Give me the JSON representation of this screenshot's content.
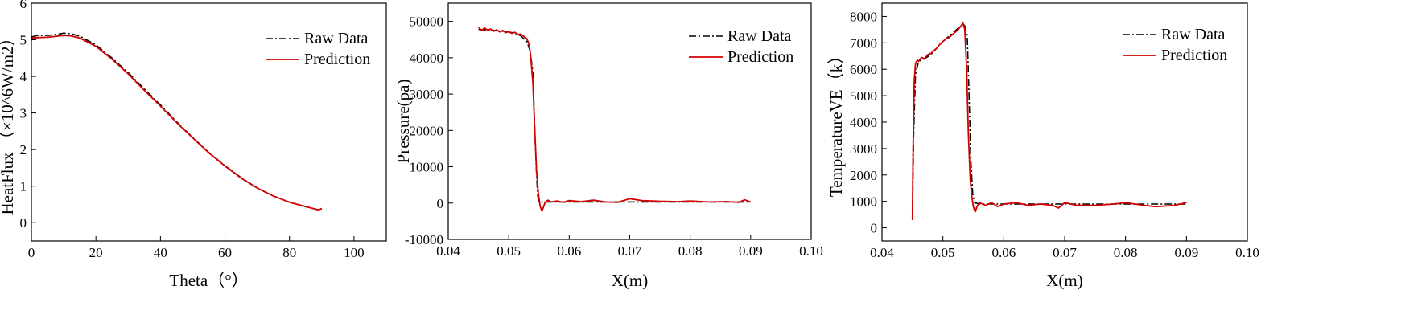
{
  "chart_data": [
    {
      "type": "line",
      "xlabel": "Theta（°）",
      "ylabel": "HeatFlux （×10^6W/m2）",
      "xlim": [
        0,
        110
      ],
      "ylim": [
        -0.5,
        6
      ],
      "xticks": [
        0,
        20,
        40,
        60,
        80,
        100
      ],
      "yticks": [
        0,
        1,
        2,
        3,
        4,
        5,
        6
      ],
      "grid": false,
      "legend_position": "top-right",
      "series": [
        {
          "name": "Raw Data",
          "style": "dash-dot",
          "color": "#000000",
          "x": [
            0,
            2,
            5,
            8,
            10,
            12,
            15,
            20,
            25,
            30,
            35,
            40,
            45,
            50,
            55,
            60,
            65,
            70,
            75,
            80,
            85,
            89,
            90
          ],
          "y": [
            5.08,
            5.12,
            5.12,
            5.15,
            5.18,
            5.17,
            5.1,
            4.86,
            4.5,
            4.1,
            3.66,
            3.22,
            2.76,
            2.33,
            1.92,
            1.56,
            1.23,
            0.95,
            0.73,
            0.56,
            0.44,
            0.35,
            0.38
          ]
        },
        {
          "name": "Prediction",
          "style": "solid",
          "color": "#d40000",
          "x": [
            0,
            2,
            5,
            8,
            10,
            12,
            15,
            20,
            25,
            30,
            35,
            40,
            45,
            50,
            55,
            60,
            65,
            70,
            75,
            80,
            85,
            89,
            90
          ],
          "y": [
            5.05,
            5.06,
            5.07,
            5.1,
            5.12,
            5.11,
            5.05,
            4.82,
            4.47,
            4.07,
            3.62,
            3.19,
            2.74,
            2.32,
            1.91,
            1.55,
            1.22,
            0.95,
            0.73,
            0.56,
            0.44,
            0.35,
            0.39
          ]
        }
      ]
    },
    {
      "type": "line",
      "xlabel": "X(m)",
      "ylabel": "Pressure(pa)",
      "xlim": [
        0.04,
        0.1
      ],
      "ylim": [
        -10000,
        55000
      ],
      "xticks": [
        0.04,
        0.05,
        0.06,
        0.07,
        0.08,
        0.09,
        0.1
      ],
      "xtick_labels": [
        "0.04",
        "0.05",
        "0.06",
        "0.07",
        "0.08",
        "0.09",
        "0.10"
      ],
      "yticks": [
        -10000,
        0,
        10000,
        20000,
        30000,
        40000,
        50000
      ],
      "grid": false,
      "legend_position": "top-right",
      "series": [
        {
          "name": "Raw Data",
          "style": "dash-dot",
          "color": "#000000",
          "x": [
            0.045,
            0.047,
            0.049,
            0.051,
            0.052,
            0.053,
            0.0535,
            0.054,
            0.0543,
            0.0546,
            0.0548,
            0.055,
            0.0553,
            0.056,
            0.06,
            0.07,
            0.08,
            0.09
          ],
          "y": [
            47800,
            47600,
            47300,
            46800,
            46000,
            44500,
            42000,
            36000,
            20000,
            8000,
            2000,
            500,
            300,
            300,
            300,
            300,
            300,
            300
          ]
        },
        {
          "name": "Prediction",
          "style": "solid",
          "color": "#d40000",
          "x": [
            0.045,
            0.0455,
            0.046,
            0.0465,
            0.047,
            0.0475,
            0.048,
            0.0485,
            0.049,
            0.0495,
            0.05,
            0.0505,
            0.051,
            0.0515,
            0.052,
            0.0525,
            0.053,
            0.0533,
            0.0536,
            0.054,
            0.0543,
            0.0546,
            0.0549,
            0.0552,
            0.0555,
            0.0558,
            0.056,
            0.0565,
            0.057,
            0.058,
            0.059,
            0.06,
            0.062,
            0.064,
            0.066,
            0.068,
            0.07,
            0.072,
            0.075,
            0.078,
            0.08,
            0.083,
            0.086,
            0.088,
            0.089,
            0.09
          ],
          "y": [
            48500,
            47500,
            48200,
            47600,
            47900,
            47300,
            47700,
            47100,
            47500,
            46900,
            47200,
            46700,
            47000,
            46400,
            46500,
            45900,
            45200,
            44000,
            41000,
            33000,
            20000,
            9000,
            2500,
            -1000,
            -2200,
            -800,
            200,
            800,
            300,
            600,
            200,
            700,
            400,
            800,
            300,
            200,
            1200,
            700,
            500,
            400,
            600,
            300,
            400,
            200,
            900,
            300
          ]
        }
      ]
    },
    {
      "type": "line",
      "xlabel": "X(m)",
      "ylabel": "TemperatureVE（k）",
      "xlim": [
        0.04,
        0.1
      ],
      "ylim": [
        -500,
        8500
      ],
      "xticks": [
        0.04,
        0.05,
        0.06,
        0.07,
        0.08,
        0.09,
        0.1
      ],
      "xtick_labels": [
        "0.04",
        "0.05",
        "0.06",
        "0.07",
        "0.08",
        "0.09",
        "0.10"
      ],
      "yticks": [
        0,
        1000,
        2000,
        3000,
        4000,
        5000,
        6000,
        7000,
        8000
      ],
      "grid": false,
      "legend_position": "top-right",
      "series": [
        {
          "name": "Raw Data",
          "style": "dash-dot",
          "color": "#000000",
          "x": [
            0.045,
            0.0452,
            0.0455,
            0.046,
            0.047,
            0.048,
            0.049,
            0.05,
            0.051,
            0.052,
            0.053,
            0.0535,
            0.054,
            0.0543,
            0.0546,
            0.0549,
            0.0552,
            0.056,
            0.06,
            0.07,
            0.08,
            0.09
          ],
          "y": [
            300,
            3500,
            5800,
            6300,
            6400,
            6550,
            6800,
            7050,
            7250,
            7450,
            7650,
            7700,
            7300,
            5000,
            2500,
            1300,
            950,
            900,
            900,
            900,
            900,
            900
          ]
        },
        {
          "name": "Prediction",
          "style": "solid",
          "color": "#d40000",
          "x": [
            0.045,
            0.0451,
            0.0453,
            0.0455,
            0.0458,
            0.046,
            0.0465,
            0.047,
            0.0475,
            0.048,
            0.0485,
            0.049,
            0.0495,
            0.05,
            0.0505,
            0.051,
            0.0515,
            0.052,
            0.0525,
            0.053,
            0.0533,
            0.0536,
            0.0539,
            0.0542,
            0.0545,
            0.0548,
            0.055,
            0.0553,
            0.0556,
            0.056,
            0.057,
            0.058,
            0.059,
            0.06,
            0.062,
            0.064,
            0.066,
            0.068,
            0.069,
            0.07,
            0.072,
            0.075,
            0.078,
            0.08,
            0.083,
            0.085,
            0.088,
            0.09
          ],
          "y": [
            300,
            3000,
            5600,
            6200,
            6350,
            6300,
            6450,
            6400,
            6550,
            6600,
            6700,
            6800,
            6950,
            7050,
            7150,
            7200,
            7300,
            7400,
            7500,
            7650,
            7750,
            7500,
            6000,
            3500,
            1800,
            1100,
            800,
            600,
            800,
            950,
            850,
            950,
            800,
            900,
            950,
            850,
            900,
            850,
            750,
            950,
            850,
            850,
            900,
            950,
            850,
            800,
            850,
            950
          ]
        }
      ]
    }
  ]
}
